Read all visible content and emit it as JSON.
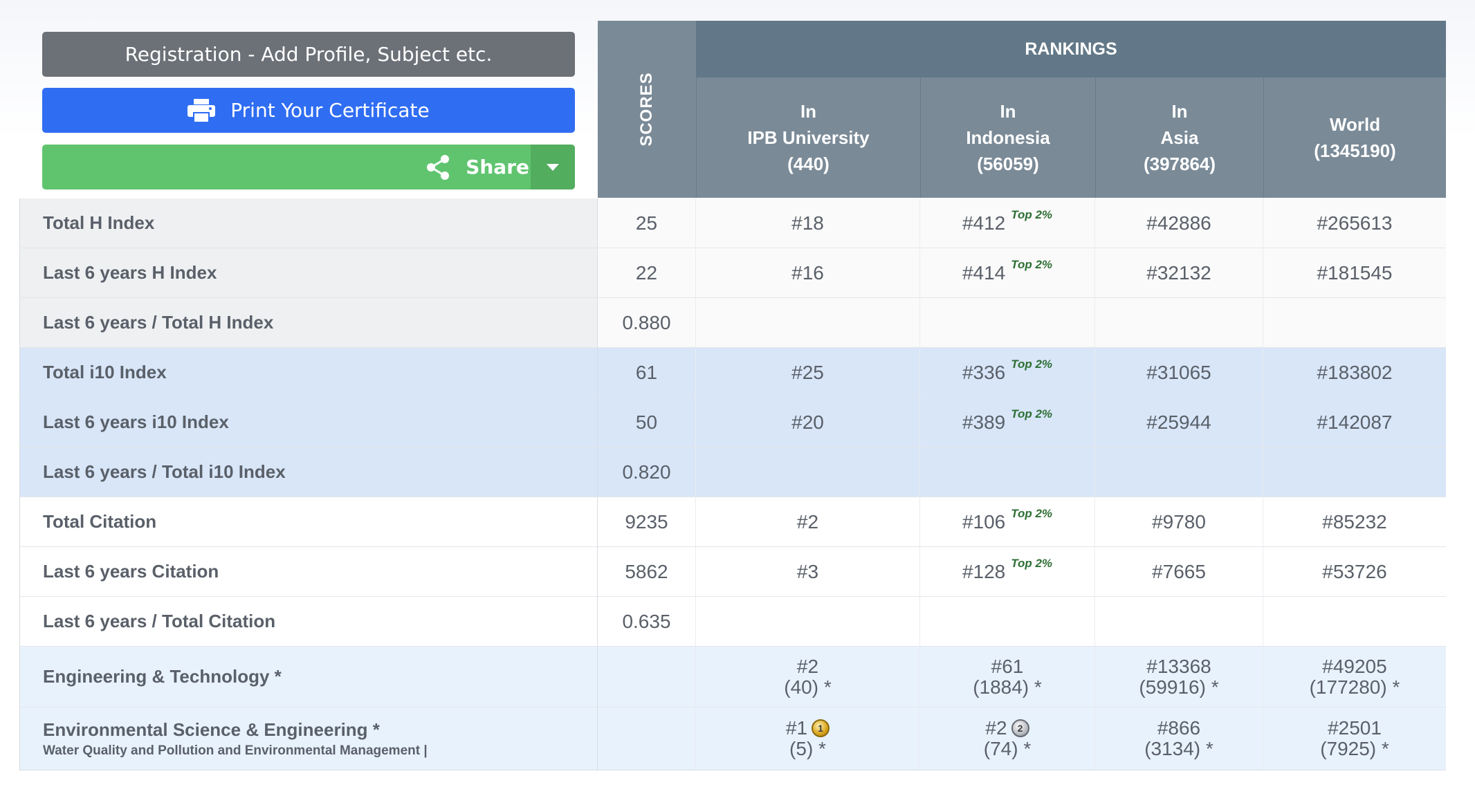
{
  "buttons": {
    "registration": "Registration - Add Profile, Subject etc.",
    "print": "Print Your Certificate",
    "share": "Share"
  },
  "icons": {
    "print": "printer-icon",
    "share": "share-icon",
    "dropdown": "caret-down-icon"
  },
  "colors": {
    "registration": "#6c7077",
    "print": "#2f6df2",
    "share": "#60c46f",
    "header_dark": "#627888",
    "header": "#7a8a97"
  },
  "header": {
    "scores": "SCORES",
    "rankings": "RANKINGS",
    "columns": [
      {
        "line1": "In",
        "line2": "IPB University",
        "line3": "(440)"
      },
      {
        "line1": "In",
        "line2": "Indonesia",
        "line3": "(56059)"
      },
      {
        "line1": "In",
        "line2": "Asia",
        "line3": "(397864)"
      },
      {
        "line1": "World",
        "line2": "(1345190)",
        "line3": ""
      }
    ]
  },
  "rows": [
    {
      "label": "Total H Index",
      "score": "25",
      "ipb": "#18",
      "indonesia": "#412",
      "badge": "Top 2%",
      "asia": "#42886",
      "world": "#265613"
    },
    {
      "label": "Last 6 years H Index",
      "score": "22",
      "ipb": "#16",
      "indonesia": "#414",
      "badge": "Top 2%",
      "asia": "#32132",
      "world": "#181545"
    },
    {
      "label": "Last 6 years / Total H Index",
      "score": "0.880"
    },
    {
      "label": "Total i10 Index",
      "score": "61",
      "ipb": "#25",
      "indonesia": "#336",
      "badge": "Top 2%",
      "asia": "#31065",
      "world": "#183802"
    },
    {
      "label": "Last 6 years i10 Index",
      "score": "50",
      "ipb": "#20",
      "indonesia": "#389",
      "badge": "Top 2%",
      "asia": "#25944",
      "world": "#142087"
    },
    {
      "label": "Last 6 years / Total i10 Index",
      "score": "0.820"
    },
    {
      "label": "Total Citation",
      "score": "9235",
      "ipb": "#2",
      "indonesia": "#106",
      "badge": "Top 2%",
      "asia": "#9780",
      "world": "#85232"
    },
    {
      "label": "Last 6 years Citation",
      "score": "5862",
      "ipb": "#3",
      "indonesia": "#128",
      "badge": "Top 2%",
      "asia": "#7665",
      "world": "#53726"
    },
    {
      "label": "Last 6 years / Total Citation",
      "score": "0.635"
    }
  ],
  "subjects": [
    {
      "label": "Engineering & Technology *",
      "ipb": {
        "rank": "#2",
        "total": "(40) *"
      },
      "indonesia": {
        "rank": "#61",
        "total": "(1884) *"
      },
      "asia": {
        "rank": "#13368",
        "total": "(59916) *"
      },
      "world": {
        "rank": "#49205",
        "total": "(177280) *"
      }
    },
    {
      "label": "Environmental Science & Engineering *",
      "sublabel": "Water Quality and Pollution and Environmental Management |",
      "ipb": {
        "rank": "#1",
        "total": "(5) *",
        "medal": "1"
      },
      "indonesia": {
        "rank": "#2",
        "total": "(74) *",
        "medal": "2"
      },
      "asia": {
        "rank": "#866",
        "total": "(3134) *"
      },
      "world": {
        "rank": "#2501",
        "total": "(7925) *"
      }
    }
  ]
}
